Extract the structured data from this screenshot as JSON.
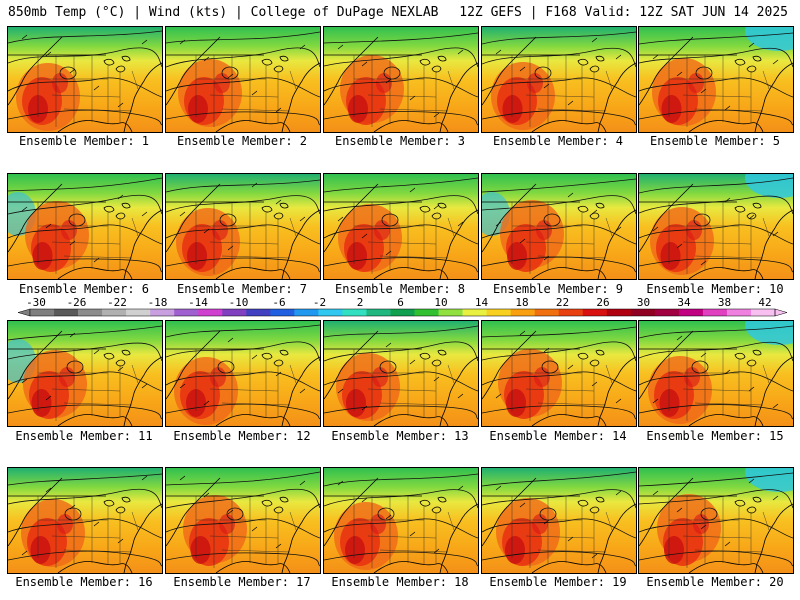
{
  "header": {
    "left": "850mb Temp (°C) | Wind (kts) | College of DuPage NEXLAB",
    "right": "12Z GEFS | F168 Valid: 12Z SAT JUN 14 2025"
  },
  "legend": {
    "ticks": [
      "-30",
      "-26",
      "-22",
      "-18",
      "-14",
      "-10",
      "-6",
      "-2",
      "2",
      "6",
      "10",
      "14",
      "18",
      "22",
      "26",
      "30",
      "34",
      "38",
      "42"
    ],
    "colors": [
      "#7f7f7f",
      "#5a5a5a",
      "#8c8c8c",
      "#b0b0b0",
      "#d0d0d0",
      "#c8a0e0",
      "#a060d0",
      "#d040d0",
      "#8040c0",
      "#4040c0",
      "#2060e0",
      "#2098f0",
      "#30c8f0",
      "#30e0c0",
      "#20b880",
      "#10a050",
      "#30c030",
      "#90e040",
      "#e8f040",
      "#f8d020",
      "#f8a010",
      "#f07010",
      "#e84010",
      "#d81010",
      "#b00010",
      "#900020",
      "#a00040",
      "#c00080",
      "#e040c0",
      "#f080e0",
      "#f8c0f0"
    ]
  },
  "panels": [
    {
      "label": "Ensemble Member: 1"
    },
    {
      "label": "Ensemble Member: 2"
    },
    {
      "label": "Ensemble Member: 3"
    },
    {
      "label": "Ensemble Member: 4"
    },
    {
      "label": "Ensemble Member: 5"
    },
    {
      "label": "Ensemble Member: 6"
    },
    {
      "label": "Ensemble Member: 7"
    },
    {
      "label": "Ensemble Member: 8"
    },
    {
      "label": "Ensemble Member: 9"
    },
    {
      "label": "Ensemble Member: 10"
    },
    {
      "label": "Ensemble Member: 11"
    },
    {
      "label": "Ensemble Member: 12"
    },
    {
      "label": "Ensemble Member: 13"
    },
    {
      "label": "Ensemble Member: 14"
    },
    {
      "label": "Ensemble Member: 15"
    },
    {
      "label": "Ensemble Member: 16"
    },
    {
      "label": "Ensemble Member: 17"
    },
    {
      "label": "Ensemble Member: 18"
    },
    {
      "label": "Ensemble Member: 19"
    },
    {
      "label": "Ensemble Member: 20"
    }
  ]
}
